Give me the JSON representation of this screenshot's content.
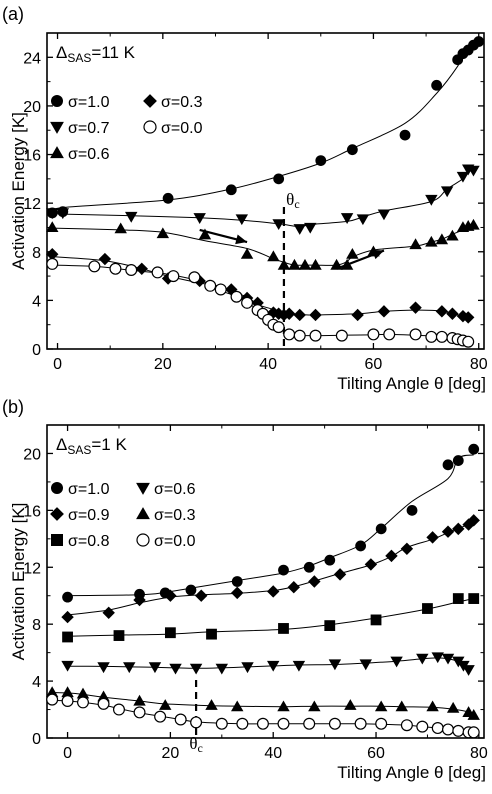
{
  "chart_data": [
    {
      "type": "scatter",
      "panel_label": "(a)",
      "annotation": "Δ",
      "annotation_sub": "SAS",
      "annotation_tail": "=11 K",
      "xlabel": "Tilting Angle θ [deg]",
      "ylabel": "Activation Energy  [K]",
      "xlim": [
        -2,
        81
      ],
      "ylim": [
        0,
        26
      ],
      "xticks": [
        "0",
        "20",
        "40",
        "60",
        "80"
      ],
      "xtick_values": [
        0,
        20,
        40,
        60,
        80
      ],
      "yticks": [
        "0",
        "4",
        "8",
        "12",
        "16",
        "20",
        "24"
      ],
      "ytick_values": [
        0,
        4,
        8,
        12,
        16,
        20,
        24
      ],
      "theta_c_label": "θ",
      "theta_c_sub": "c",
      "theta_c": 43,
      "arrows": [
        {
          "x1": 27,
          "y1": 9.8,
          "x2": 36,
          "y2": 8.8
        },
        {
          "x1": 53,
          "y1": 6.6,
          "x2": 62,
          "y2": 8.1
        }
      ],
      "legend_rows": [
        [
          {
            "name": "σ=1.0",
            "marker": "circle"
          },
          {
            "name": "σ=0.3",
            "marker": "diamond"
          }
        ],
        [
          {
            "name": "σ=0.7",
            "marker": "triangle-down"
          },
          {
            "name": "σ=0.0",
            "marker": "circle-open"
          }
        ],
        [
          {
            "name": "σ=0.6",
            "marker": "triangle-up"
          }
        ]
      ],
      "series": [
        {
          "name": "σ=1.0",
          "marker": "circle",
          "x": [
            -1,
            1,
            21,
            33,
            42,
            50,
            56,
            66,
            72,
            76,
            77,
            78,
            79,
            80
          ],
          "y": [
            11.2,
            11.3,
            12.4,
            13.1,
            14.0,
            15.5,
            16.4,
            17.6,
            21.7,
            23.8,
            24.3,
            24.6,
            25.0,
            25.3
          ]
        },
        {
          "name": "σ=0.7",
          "marker": "triangle-down",
          "x": [
            -1,
            1,
            14,
            27,
            35,
            42,
            46,
            48,
            55,
            58,
            62,
            71,
            74,
            77,
            78,
            79
          ],
          "y": [
            11.2,
            11.2,
            10.9,
            10.8,
            10.7,
            10.3,
            9.9,
            10.0,
            10.8,
            10.7,
            11.1,
            12.3,
            13.0,
            14.2,
            14.8,
            14.7
          ]
        },
        {
          "name": "σ=0.6",
          "marker": "triangle-up",
          "x": [
            -1,
            12,
            20,
            28,
            36,
            41,
            43,
            45,
            47,
            49,
            53,
            55,
            56,
            60,
            68,
            71,
            73,
            75,
            77,
            78,
            79
          ],
          "y": [
            10.0,
            9.9,
            9.5,
            9.4,
            7.8,
            7.6,
            6.9,
            6.9,
            6.9,
            6.9,
            6.9,
            6.9,
            7.8,
            8.0,
            8.6,
            8.8,
            9.0,
            9.3,
            10.0,
            10.1,
            10.2
          ]
        },
        {
          "name": "σ=0.3",
          "marker": "diamond",
          "x": [
            -1,
            9,
            16,
            21,
            27,
            31,
            33,
            36,
            38,
            41,
            42,
            43,
            44,
            46,
            49,
            57,
            62,
            68,
            73,
            75,
            77,
            78
          ],
          "y": [
            7.8,
            7.4,
            6.6,
            5.8,
            5.6,
            4.9,
            4.9,
            4.2,
            3.8,
            3.0,
            2.9,
            2.8,
            2.9,
            2.8,
            2.8,
            2.8,
            3.1,
            3.4,
            3.1,
            2.9,
            2.7,
            2.6
          ]
        },
        {
          "name": "σ=0.0",
          "marker": "circle-open",
          "x": [
            -1,
            7,
            11,
            14,
            19,
            22,
            26,
            29,
            31,
            34,
            36,
            38,
            39,
            40,
            41,
            42,
            44,
            46,
            49,
            54,
            60,
            63,
            68,
            71,
            73,
            75,
            76,
            77,
            78
          ],
          "y": [
            7.0,
            6.8,
            6.6,
            6.5,
            6.3,
            6.0,
            5.9,
            5.2,
            4.9,
            4.3,
            3.8,
            3.2,
            2.9,
            2.4,
            2.0,
            1.8,
            1.2,
            1.1,
            1.1,
            1.1,
            1.2,
            1.2,
            1.2,
            1.0,
            1.0,
            0.9,
            0.8,
            0.7,
            0.6
          ]
        }
      ]
    },
    {
      "type": "scatter",
      "panel_label": "(b)",
      "annotation": "Δ",
      "annotation_sub": "SAS",
      "annotation_tail": "=1 K",
      "xlabel": "Tilting Angle θ [deg]",
      "ylabel": "Activation Energy  [K]",
      "xlim": [
        -4,
        81
      ],
      "ylim": [
        0,
        22
      ],
      "xticks": [
        "0",
        "20",
        "40",
        "60",
        "80"
      ],
      "xtick_values": [
        0,
        20,
        40,
        60,
        80
      ],
      "yticks": [
        "0",
        "4",
        "8",
        "12",
        "16",
        "20"
      ],
      "ytick_values": [
        0,
        4,
        8,
        12,
        16,
        20
      ],
      "theta_c_label": "θ",
      "theta_c_sub": "c",
      "theta_c": 25,
      "legend_rows": [
        [
          {
            "name": "σ=1.0",
            "marker": "circle"
          },
          {
            "name": "σ=0.6",
            "marker": "triangle-down"
          }
        ],
        [
          {
            "name": "σ=0.9",
            "marker": "diamond"
          },
          {
            "name": "σ=0.3",
            "marker": "triangle-up"
          }
        ],
        [
          {
            "name": "σ=0.8",
            "marker": "square"
          },
          {
            "name": "σ=0.0",
            "marker": "circle-open"
          }
        ]
      ],
      "series": [
        {
          "name": "σ=1.0",
          "marker": "circle",
          "x": [
            0,
            14,
            19,
            24,
            33,
            42,
            47,
            51,
            57,
            61,
            67,
            74,
            76,
            79
          ],
          "y": [
            9.9,
            10.1,
            10.2,
            10.4,
            11.0,
            11.8,
            12.0,
            12.5,
            13.5,
            14.7,
            16.0,
            19.2,
            19.5,
            20.3
          ]
        },
        {
          "name": "σ=0.9",
          "marker": "diamond",
          "x": [
            0,
            8,
            14,
            20,
            26,
            33,
            40,
            44,
            48,
            53,
            59,
            63,
            66,
            71,
            74,
            76,
            78,
            79
          ],
          "y": [
            8.5,
            8.8,
            9.7,
            10.0,
            10.0,
            10.2,
            10.3,
            10.6,
            11.0,
            11.5,
            12.2,
            12.8,
            13.3,
            14.1,
            14.5,
            14.7,
            15.0,
            15.3
          ]
        },
        {
          "name": "σ=0.8",
          "marker": "square",
          "x": [
            0,
            10,
            20,
            28,
            42,
            51,
            60,
            70,
            76,
            79
          ],
          "y": [
            7.1,
            7.2,
            7.4,
            7.3,
            7.7,
            7.9,
            8.3,
            9.1,
            9.8,
            9.8
          ]
        },
        {
          "name": "σ=0.6",
          "marker": "triangle-down",
          "x": [
            0,
            7,
            12,
            17,
            21,
            25,
            30,
            35,
            40,
            45,
            52,
            58,
            64,
            69,
            72,
            74,
            76,
            77,
            78
          ],
          "y": [
            5.1,
            5.0,
            5.0,
            5.0,
            4.9,
            4.9,
            4.9,
            5.0,
            5.1,
            5.1,
            5.2,
            5.2,
            5.4,
            5.6,
            5.7,
            5.6,
            5.4,
            5.1,
            4.8
          ]
        },
        {
          "name": "σ=0.3",
          "marker": "triangle-up",
          "x": [
            -3,
            0,
            3,
            7,
            14,
            19,
            28,
            33,
            42,
            48,
            55,
            61,
            65,
            71,
            75,
            78,
            79
          ],
          "y": [
            3.2,
            3.2,
            3.1,
            2.9,
            2.6,
            2.3,
            2.3,
            2.2,
            2.2,
            2.2,
            2.3,
            2.2,
            2.2,
            2.2,
            2.1,
            1.8,
            1.6
          ]
        },
        {
          "name": "σ=0.0",
          "marker": "circle-open",
          "x": [
            -3,
            0,
            3,
            7,
            10,
            14,
            18,
            22,
            25,
            30,
            34,
            38,
            42,
            47,
            52,
            57,
            61,
            66,
            69,
            72,
            74,
            76,
            78,
            79
          ],
          "y": [
            2.7,
            2.6,
            2.5,
            2.4,
            2.0,
            1.8,
            1.5,
            1.3,
            1.1,
            1.0,
            1.0,
            1.0,
            1.0,
            1.0,
            1.0,
            1.0,
            1.0,
            0.9,
            0.8,
            0.7,
            0.6,
            0.5,
            0.4,
            0.4
          ]
        }
      ]
    }
  ]
}
